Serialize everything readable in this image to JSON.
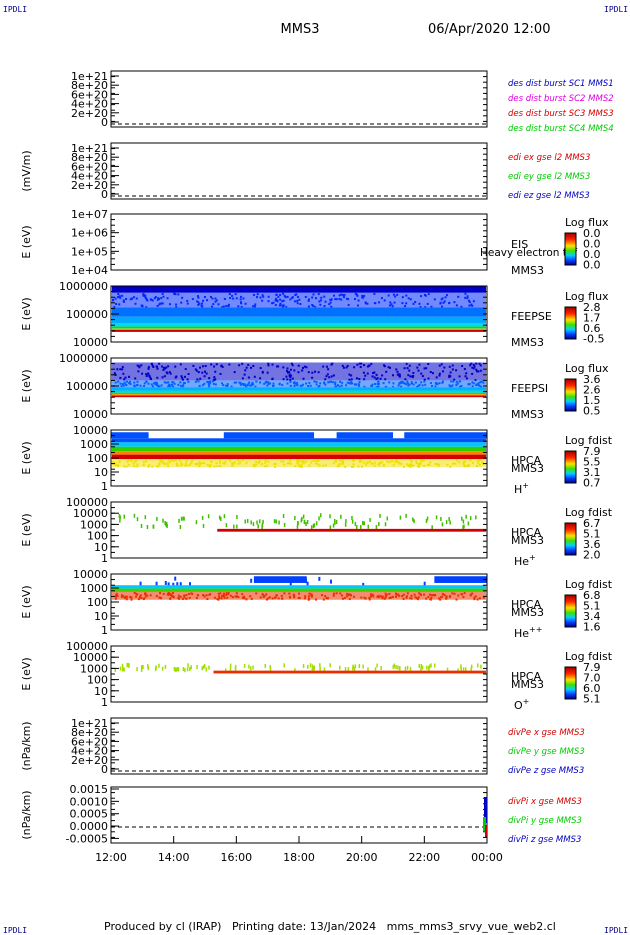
{
  "header": {
    "corner_label": "IPDLI",
    "mission": "MMS3",
    "datetime": "06/Apr/2020 12:00"
  },
  "footer": {
    "text": "Produced by cl (IRAP)   Printing date: 13/Jan/2024   mms_mms3_srvy_vue_web2.cl"
  },
  "colors": {
    "red": "#d40000",
    "magenta": "#e000e0",
    "green": "#00cc00",
    "blue": "#0000c0"
  },
  "chart_data": {
    "type": "heatmap",
    "x_axis": {
      "ticks": [
        "12:00",
        "14:00",
        "16:00",
        "18:00",
        "20:00",
        "22:00",
        "00:00"
      ]
    },
    "panels": [
      {
        "kind": "line",
        "ylabel": "",
        "yticks": [
          "1e+21",
          "8e+20",
          "6e+20",
          "4e+20",
          "2e+20",
          "0"
        ],
        "legend": [
          {
            "text": "des dist burst SC1 MMS1",
            "color": "#0000c0"
          },
          {
            "text": "des dist burst SC2 MMS2",
            "color": "#e000e0"
          },
          {
            "text": "des dist burst SC3 MMS3",
            "color": "#d40000"
          },
          {
            "text": "des dist burst SC4 MMS4",
            "color": "#00cc00"
          }
        ]
      },
      {
        "kind": "line",
        "ylabel": "(mV/m)",
        "yticks": [
          "1e+21",
          "8e+20",
          "6e+20",
          "4e+20",
          "2e+20",
          "0"
        ],
        "legend": [
          {
            "text": "edi ex gse l2 MMS3",
            "color": "#d40000"
          },
          {
            "text": "edi ey gse l2 MMS3",
            "color": "#00cc00"
          },
          {
            "text": "edi ez gse l2 MMS3",
            "color": "#0000c0"
          }
        ]
      },
      {
        "kind": "spec",
        "ylabel": "E (eV)",
        "yticks": [
          "1e+07",
          "1e+06",
          "1e+05",
          "1e+04"
        ],
        "instrument": [
          "EIS",
          "MMS3"
        ],
        "overlay": "Heavy electron tof",
        "cbar_title": "Log flux",
        "cbar_ticks": [
          "0.0",
          "0.0",
          "0.0",
          "0.0"
        ],
        "species": "",
        "bands": []
      },
      {
        "kind": "spec",
        "ylabel": "E (eV)",
        "yticks": [
          "1000000",
          "100000",
          "10000"
        ],
        "instrument": [
          "FEEPSE",
          "MMS3"
        ],
        "cbar_title": "Log flux",
        "cbar_ticks": [
          "2.8",
          "1.7",
          "0.6",
          "-0.5"
        ],
        "species": "",
        "bands": [
          {
            "from": 0.0,
            "to": 0.12,
            "color": "#0000c8"
          },
          {
            "from": 0.12,
            "to": 0.38,
            "color": "#0028ff",
            "speckle": true
          },
          {
            "from": 0.38,
            "to": 0.55,
            "color": "#0070ff"
          },
          {
            "from": 0.55,
            "to": 0.66,
            "color": "#00a8ff"
          },
          {
            "from": 0.66,
            "to": 0.72,
            "color": "#00d8ff"
          },
          {
            "from": 0.72,
            "to": 0.76,
            "color": "#00d060"
          },
          {
            "from": 0.76,
            "to": 0.78,
            "color": "#e0e000"
          },
          {
            "from": 0.78,
            "to": 0.82,
            "color": "#d40000"
          }
        ]
      },
      {
        "kind": "spec",
        "ylabel": "E (eV)",
        "yticks": [
          "1000000",
          "100000",
          "10000"
        ],
        "instrument": [
          "FEEPSI",
          "MMS3"
        ],
        "cbar_title": "Log flux",
        "cbar_ticks": [
          "3.6",
          "2.6",
          "1.5",
          "0.5"
        ],
        "species": "",
        "bands": [
          {
            "from": 0.08,
            "to": 0.4,
            "color": "#0000c8",
            "speckle": true
          },
          {
            "from": 0.4,
            "to": 0.52,
            "color": "#0060ff",
            "speckle": true
          },
          {
            "from": 0.52,
            "to": 0.58,
            "color": "#00b0ff"
          },
          {
            "from": 0.58,
            "to": 0.62,
            "color": "#00d8e0"
          },
          {
            "from": 0.62,
            "to": 0.64,
            "color": "#00c040"
          },
          {
            "from": 0.64,
            "to": 0.67,
            "color": "#f0a000"
          },
          {
            "from": 0.67,
            "to": 0.7,
            "color": "#d40000"
          }
        ]
      },
      {
        "kind": "spec",
        "ylabel": "E (eV)",
        "yticks": [
          "10000",
          "1000",
          "100",
          "10",
          "1"
        ],
        "instrument": [
          "HPCA",
          "MMS3"
        ],
        "cbar_title": "Log fdist",
        "cbar_ticks": [
          "7.9",
          "5.5",
          "3.1",
          "0.7"
        ],
        "species": "H",
        "species_sup": "+",
        "bands": [
          {
            "from": 0.04,
            "to": 0.22,
            "color": "#0050ff",
            "gaps": true
          },
          {
            "from": 0.22,
            "to": 0.3,
            "color": "#00c8ff"
          },
          {
            "from": 0.3,
            "to": 0.38,
            "color": "#30d000"
          },
          {
            "from": 0.38,
            "to": 0.44,
            "color": "#ff8000"
          },
          {
            "from": 0.44,
            "to": 0.52,
            "color": "#d40000"
          },
          {
            "from": 0.52,
            "to": 0.66,
            "color": "#f0e000",
            "speckle": true
          }
        ]
      },
      {
        "kind": "spec",
        "ylabel": "E (eV)",
        "yticks": [
          "100000",
          "10000",
          "1000",
          "100",
          "10",
          "1"
        ],
        "instrument": [
          "HPCA",
          "MMS3"
        ],
        "cbar_title": "Log fdist",
        "cbar_ticks": [
          "6.7",
          "5.1",
          "3.6",
          "2.0"
        ],
        "species": "He",
        "species_sup": "+",
        "bands": [
          {
            "from": 0.2,
            "to": 0.44,
            "color": "#40c000",
            "sparse": true
          },
          {
            "from": 0.48,
            "to": 0.53,
            "color": "#d40000",
            "from_x": 0.28
          }
        ]
      },
      {
        "kind": "spec",
        "ylabel": "E (eV)",
        "yticks": [
          "10000",
          "1000",
          "100",
          "10",
          "1"
        ],
        "instrument": [
          "HPCA",
          "MMS3"
        ],
        "cbar_title": "Log fdist",
        "cbar_ticks": [
          "6.8",
          "5.1",
          "3.4",
          "1.6"
        ],
        "species": "He",
        "species_sup": "++",
        "bands": [
          {
            "from": 0.04,
            "to": 0.16,
            "color": "#0040ff",
            "blocks": true
          },
          {
            "from": 0.2,
            "to": 0.26,
            "color": "#00c8ff"
          },
          {
            "from": 0.26,
            "to": 0.32,
            "color": "#40d000"
          },
          {
            "from": 0.32,
            "to": 0.46,
            "color": "#e83000",
            "speckle": true
          }
        ]
      },
      {
        "kind": "spec",
        "ylabel": "E (eV)",
        "yticks": [
          "100000",
          "10000",
          "1000",
          "100",
          "10",
          "1"
        ],
        "instrument": [
          "HPCA",
          "MMS3"
        ],
        "cbar_title": "Log fdist",
        "cbar_ticks": [
          "7.9",
          "7.0",
          "6.0",
          "5.1"
        ],
        "species": "O",
        "species_sup": "+",
        "bands": [
          {
            "from": 0.3,
            "to": 0.42,
            "color": "#a0e000",
            "sparse": true
          },
          {
            "from": 0.44,
            "to": 0.49,
            "color": "#e83000",
            "from_x": 0.27
          }
        ]
      },
      {
        "kind": "line",
        "ylabel": "(nPa/km)",
        "yticks": [
          "1e+21",
          "8e+20",
          "6e+20",
          "4e+20",
          "2e+20",
          "0"
        ],
        "legend": [
          {
            "text": "divPe x gse MMS3",
            "color": "#d40000"
          },
          {
            "text": "divPe y gse MMS3",
            "color": "#00cc00"
          },
          {
            "text": "divPe z gse MMS3",
            "color": "#0000c0"
          }
        ]
      },
      {
        "kind": "line",
        "ylabel": "(nPa/km)",
        "yticks": [
          "0.0015",
          "0.0010",
          "0.0005",
          "0.0000",
          "-0.0005"
        ],
        "legend": [
          {
            "text": "divPi x gse MMS3",
            "color": "#d40000"
          },
          {
            "text": "divPi y gse MMS3",
            "color": "#00cc00"
          },
          {
            "text": "divPi z gse MMS3",
            "color": "#0000c0"
          }
        ]
      }
    ]
  }
}
